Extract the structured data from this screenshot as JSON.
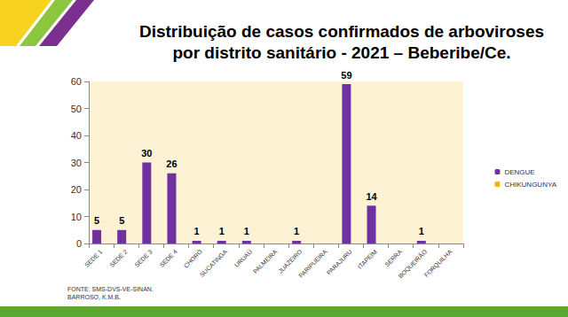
{
  "chart_data": {
    "type": "bar",
    "title": "Distribuição de casos confirmados de arboviroses\npor distrito sanitário - 2021 – Beberibe/Ce.",
    "annotations": [
      "FONTE: SMS-DVS-VE-SINAN.",
      "BARROSO, K.M.B."
    ],
    "categories": [
      "SEDE 1",
      "SEDE 2",
      "SEDE 3",
      "SEDE 4",
      "CHORÓ",
      "SUCATINGA",
      "URUAÚ",
      "PALMEIRA",
      "JUAZEIRO",
      "PARIPUEIRA",
      "PARAJURU",
      "ITAPEIM",
      "SERRA",
      "BOQUEIRÃO",
      "FORQUILHA"
    ],
    "series": [
      {
        "name": "DENGUE",
        "color": "#7030a0",
        "data_labels": true,
        "values": [
          5,
          5,
          30,
          26,
          1,
          1,
          1,
          null,
          1,
          null,
          59,
          14,
          null,
          1,
          null
        ]
      },
      {
        "name": "CHIKUNGUNYA",
        "color": "#f5b400",
        "data_labels": false,
        "values": [
          0,
          null,
          null,
          null,
          null,
          null,
          null,
          null,
          null,
          null,
          null,
          null,
          null,
          null,
          null
        ]
      }
    ],
    "ylim": [
      0,
      60
    ],
    "yticks": [
      0,
      10,
      20,
      30,
      40,
      50,
      60
    ],
    "grid": false,
    "legend": "right"
  }
}
